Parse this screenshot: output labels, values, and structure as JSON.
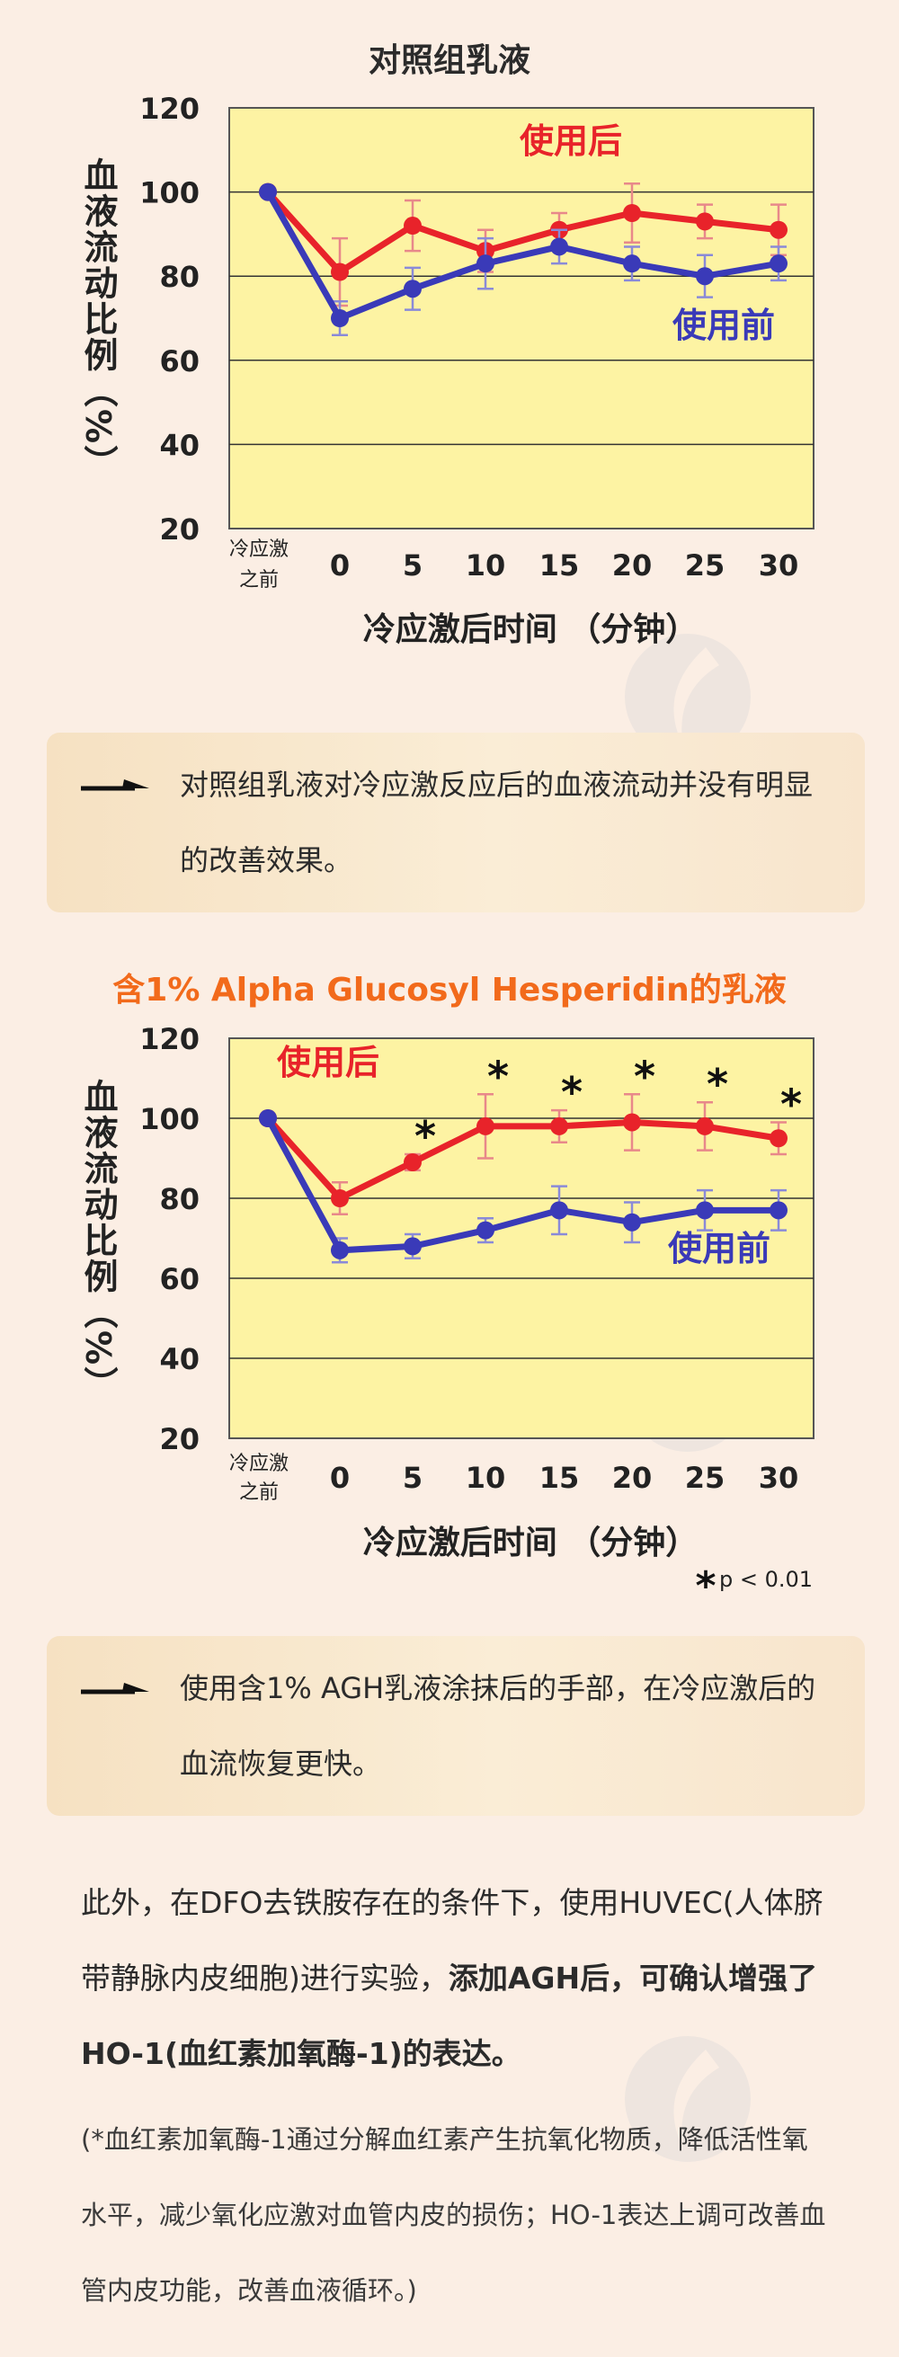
{
  "charts": [
    {
      "title": "对照组乳液",
      "title_color": "#2b2b2b",
      "ylabel": "血液流动比例（%）",
      "xlabel": "冷应激后时间 （分钟）",
      "note": ""
    },
    {
      "title": "含1% Alpha Glucosyl Hesperidin的乳液",
      "title_color": "#f26a1b",
      "ylabel": "血液流动比例（%）",
      "xlabel": "冷应激后时间 （分钟）",
      "note": "p < 0.01"
    }
  ],
  "chart_data": [
    {
      "type": "line",
      "title": "对照组乳液",
      "xlabel": "冷应激后时间 （分钟）",
      "ylabel": "血液流动比例（%）",
      "categories": [
        "冷应激之前",
        "0",
        "5",
        "10",
        "15",
        "20",
        "25",
        "30"
      ],
      "ylim": [
        20,
        120
      ],
      "yticks": [
        20,
        40,
        60,
        80,
        100,
        120
      ],
      "grid": true,
      "series": [
        {
          "name": "使用后",
          "color": "#e8232a",
          "values": [
            100,
            81,
            92,
            86,
            91,
            95,
            93,
            91
          ],
          "errors": [
            0,
            8,
            6,
            5,
            4,
            7,
            4,
            6
          ]
        },
        {
          "name": "使用前",
          "color": "#3a3ab8",
          "values": [
            100,
            70,
            77,
            83,
            87,
            83,
            80,
            83
          ],
          "errors": [
            0,
            4,
            5,
            6,
            4,
            4,
            5,
            4
          ]
        }
      ],
      "significance": []
    },
    {
      "type": "line",
      "title": "含1% Alpha Glucosyl Hesperidin的乳液",
      "xlabel": "冷应激后时间 （分钟）",
      "ylabel": "血液流动比例（%）",
      "categories": [
        "冷应激之前",
        "0",
        "5",
        "10",
        "15",
        "20",
        "25",
        "30"
      ],
      "ylim": [
        20,
        120
      ],
      "yticks": [
        20,
        40,
        60,
        80,
        100,
        120
      ],
      "grid": true,
      "series": [
        {
          "name": "使用后",
          "color": "#e8232a",
          "values": [
            100,
            80,
            89,
            98,
            98,
            99,
            98,
            95
          ],
          "errors": [
            0,
            4,
            2,
            8,
            4,
            7,
            6,
            4
          ]
        },
        {
          "name": "使用前",
          "color": "#3a3ab8",
          "values": [
            100,
            67,
            68,
            72,
            77,
            74,
            77,
            77
          ],
          "errors": [
            0,
            3,
            3,
            3,
            6,
            5,
            5,
            5
          ]
        }
      ],
      "significance": [
        "5",
        "10",
        "15",
        "20",
        "25",
        "30"
      ],
      "significance_mark": "*",
      "significance_note": "p < 0.01"
    }
  ],
  "notes": [
    {
      "text": "对照组乳液对冷应激反应后的血液流动并没有明显的改善效果。"
    },
    {
      "text": "使用含1%   AGH乳液涂抹后的手部，在冷应激后的血流恢复更快。"
    }
  ],
  "paragraph": {
    "normal": "此外，在DFO去铁胺存在的条件下，使用HUVEC(人体脐带静脉内皮细胞)进行实验，",
    "bold": "添加AGH后，可确认增强了HO-1(血红素加氧酶-1)的表达。"
  },
  "footnote": "(*血红素加氧酶-1通过分解血红素产生抗氧化物质，降低活性氧水平，减少氧化应激对血管内皮的损伤；HO-1表达上调可改善血管内皮功能，改善血液循环。)"
}
